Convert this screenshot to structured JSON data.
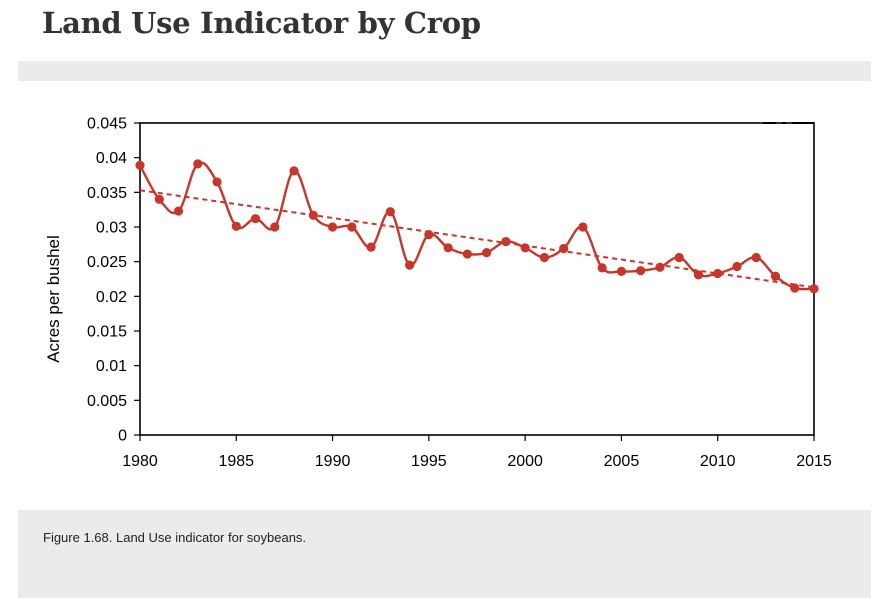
{
  "page": {
    "title": "Land Use Indicator by Crop",
    "caption": "Figure 1.68. Land Use indicator for soybeans."
  },
  "colors": {
    "series": "#c8352b",
    "axis": "#000000",
    "panel": "#ebebeb"
  },
  "chart_data": {
    "type": "line",
    "title": "",
    "xlabel": "",
    "ylabel": "Acres per bushel",
    "xlim": [
      1980,
      2015
    ],
    "ylim": [
      0,
      0.045
    ],
    "x_ticks": [
      1980,
      1985,
      1990,
      1995,
      2000,
      2005,
      2010,
      2015
    ],
    "y_ticks": [
      "0",
      "0.005",
      "0.01",
      "0.015",
      "0.02",
      "0.025",
      "0.03",
      "0.035",
      "0.04",
      "0.045"
    ],
    "grid": false,
    "legend": "top-right (partially visible)",
    "series": [
      {
        "style": "line-with-markers",
        "x": [
          1980,
          1981,
          1982,
          1983,
          1984,
          1985,
          1986,
          1987,
          1988,
          1989,
          1990,
          1991,
          1992,
          1993,
          1994,
          1995,
          1996,
          1997,
          1998,
          1999,
          2000,
          2001,
          2002,
          2003,
          2004,
          2005,
          2006,
          2007,
          2008,
          2009,
          2010,
          2011,
          2012,
          2013,
          2014,
          2015
        ],
        "values": [
          0.0389,
          0.034,
          0.0323,
          0.0391,
          0.0365,
          0.0301,
          0.0312,
          0.03,
          0.0381,
          0.0317,
          0.03,
          0.03,
          0.0271,
          0.0322,
          0.0245,
          0.0289,
          0.027,
          0.0261,
          0.0263,
          0.0279,
          0.027,
          0.0256,
          0.0269,
          0.03,
          0.0241,
          0.0236,
          0.0237,
          0.0242,
          0.0256,
          0.0231,
          0.0233,
          0.0243,
          0.0256,
          0.0229,
          0.0212,
          0.0211
        ]
      },
      {
        "style": "dashed-trendline",
        "x": [
          1980,
          2015
        ],
        "values": [
          0.0353,
          0.0213
        ]
      }
    ]
  }
}
